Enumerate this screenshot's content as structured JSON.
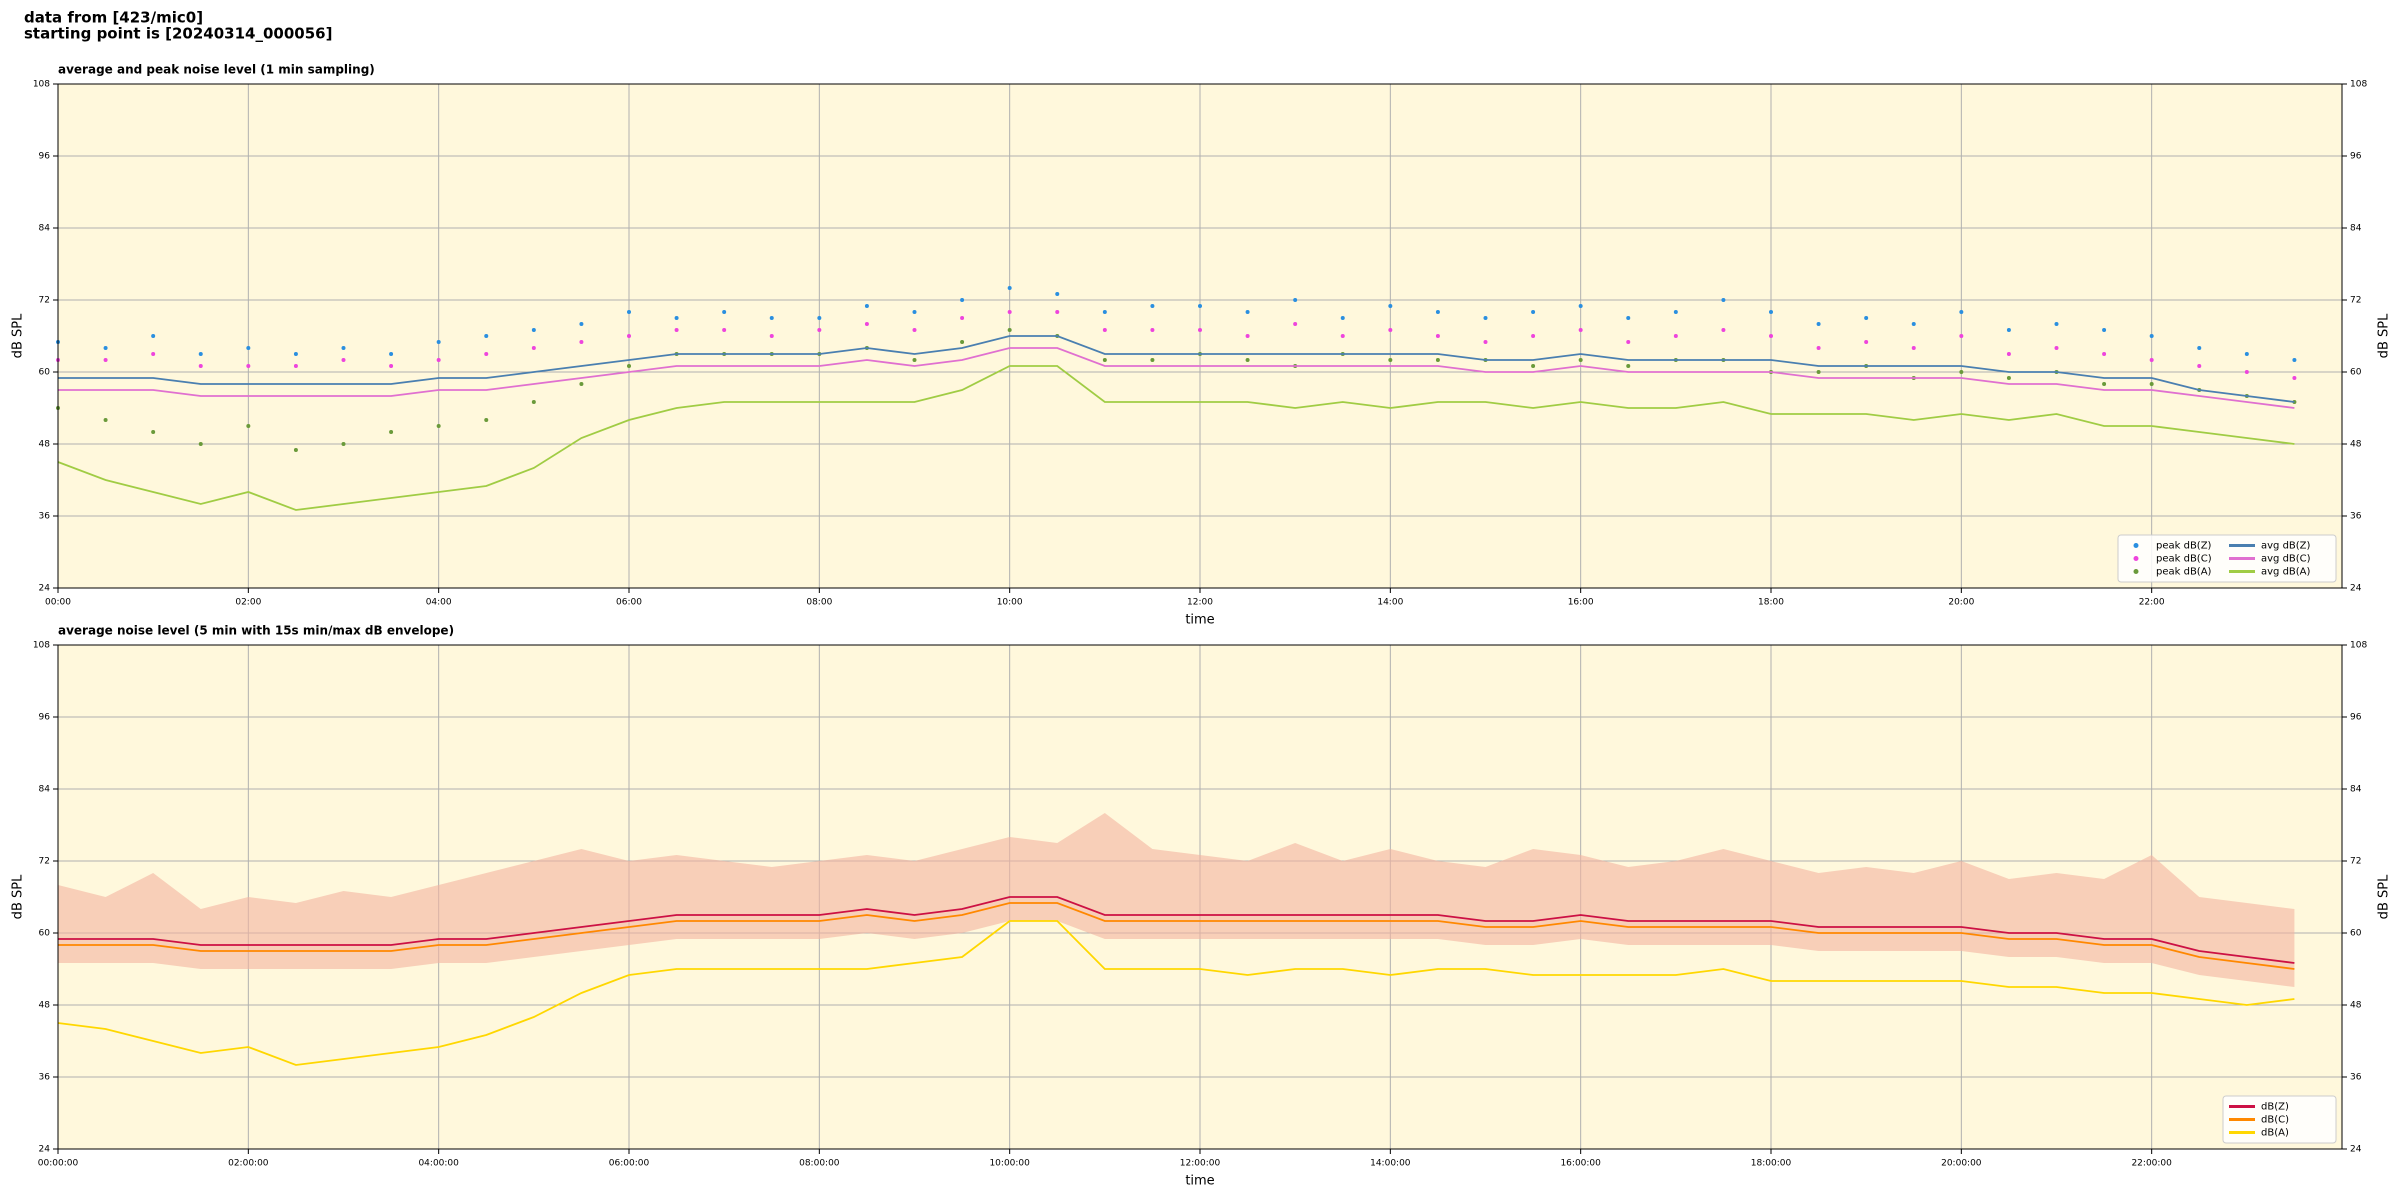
{
  "header": {
    "lines": [
      "data from [423/mic0]",
      "starting point is [20240314_000056]"
    ]
  },
  "chart_data": [
    {
      "type": "line",
      "title": "average and peak noise level (1 min sampling)",
      "xlabel": "time",
      "ylabel": "dB SPL",
      "ylabel_right": "dB SPL",
      "x": [
        0,
        0.5,
        1,
        1.5,
        2,
        2.5,
        3,
        3.5,
        4,
        4.5,
        5,
        5.5,
        6,
        6.5,
        7,
        7.5,
        8,
        8.5,
        9,
        9.5,
        10,
        10.5,
        11,
        11.5,
        12,
        12.5,
        13,
        13.5,
        14,
        14.5,
        15,
        15.5,
        16,
        16.5,
        17,
        17.5,
        18,
        18.5,
        19,
        19.5,
        20,
        20.5,
        21,
        21.5,
        22,
        22.5,
        23,
        23.5
      ],
      "xlim": [
        0,
        24
      ],
      "ylim": [
        24,
        108
      ],
      "yticks": [
        24,
        36,
        48,
        60,
        72,
        84,
        96,
        108
      ],
      "xticks": [
        {
          "value": 0,
          "label": "00:00"
        },
        {
          "value": 2,
          "label": "02:00"
        },
        {
          "value": 4,
          "label": "04:00"
        },
        {
          "value": 6,
          "label": "06:00"
        },
        {
          "value": 8,
          "label": "08:00"
        },
        {
          "value": 10,
          "label": "10:00"
        },
        {
          "value": 12,
          "label": "12:00"
        },
        {
          "value": 14,
          "label": "14:00"
        },
        {
          "value": 16,
          "label": "16:00"
        },
        {
          "value": 18,
          "label": "18:00"
        },
        {
          "value": 20,
          "label": "20:00"
        },
        {
          "value": 22,
          "label": "22:00"
        }
      ],
      "grid": true,
      "background": "#fff8dc",
      "legend": "lower right",
      "legend_columns": 2,
      "series": [
        {
          "name": "peak dB(Z)",
          "mark": "points",
          "color": "#2a8fe0",
          "values": [
            65,
            64,
            66,
            63,
            64,
            63,
            64,
            63,
            65,
            66,
            67,
            68,
            70,
            69,
            70,
            69,
            69,
            71,
            70,
            72,
            74,
            73,
            70,
            71,
            71,
            70,
            72,
            69,
            71,
            70,
            69,
            70,
            71,
            69,
            70,
            72,
            70,
            68,
            69,
            68,
            70,
            67,
            68,
            67,
            66,
            64,
            63,
            62
          ]
        },
        {
          "name": "peak dB(C)",
          "mark": "points",
          "color": "#ee44dd",
          "values": [
            62,
            62,
            63,
            61,
            61,
            61,
            62,
            61,
            62,
            63,
            64,
            65,
            66,
            67,
            67,
            66,
            67,
            68,
            67,
            69,
            70,
            70,
            67,
            67,
            67,
            66,
            68,
            66,
            67,
            66,
            65,
            66,
            67,
            65,
            66,
            67,
            66,
            64,
            65,
            64,
            66,
            63,
            64,
            63,
            62,
            61,
            60,
            59
          ]
        },
        {
          "name": "peak dB(A)",
          "mark": "points",
          "color": "#6a9a3a",
          "values": [
            54,
            52,
            50,
            48,
            51,
            47,
            48,
            50,
            51,
            52,
            55,
            58,
            61,
            63,
            63,
            63,
            63,
            64,
            62,
            65,
            67,
            66,
            62,
            62,
            63,
            62,
            61,
            63,
            62,
            62,
            62,
            61,
            62,
            61,
            62,
            62,
            60,
            60,
            61,
            59,
            60,
            59,
            60,
            58,
            58,
            57,
            56,
            55
          ]
        },
        {
          "name": "avg dB(Z)",
          "mark": "line",
          "color": "#4a7fb0",
          "values": [
            59,
            59,
            59,
            58,
            58,
            58,
            58,
            58,
            59,
            59,
            60,
            61,
            62,
            63,
            63,
            63,
            63,
            64,
            63,
            64,
            66,
            66,
            63,
            63,
            63,
            63,
            63,
            63,
            63,
            63,
            62,
            62,
            63,
            62,
            62,
            62,
            62,
            61,
            61,
            61,
            61,
            60,
            60,
            59,
            59,
            57,
            56,
            55
          ]
        },
        {
          "name": "avg dB(C)",
          "mark": "line",
          "color": "#e070d0",
          "values": [
            57,
            57,
            57,
            56,
            56,
            56,
            56,
            56,
            57,
            57,
            58,
            59,
            60,
            61,
            61,
            61,
            61,
            62,
            61,
            62,
            64,
            64,
            61,
            61,
            61,
            61,
            61,
            61,
            61,
            61,
            60,
            60,
            61,
            60,
            60,
            60,
            60,
            59,
            59,
            59,
            59,
            58,
            58,
            57,
            57,
            56,
            55,
            54
          ]
        },
        {
          "name": "avg dB(A)",
          "mark": "line",
          "color": "#a0cc44",
          "values": [
            45,
            42,
            40,
            38,
            40,
            37,
            38,
            39,
            40,
            41,
            44,
            49,
            52,
            54,
            55,
            55,
            55,
            55,
            55,
            57,
            61,
            61,
            55,
            55,
            55,
            55,
            54,
            55,
            54,
            55,
            55,
            54,
            55,
            54,
            54,
            55,
            53,
            53,
            53,
            52,
            53,
            52,
            53,
            51,
            51,
            50,
            49,
            48
          ]
        }
      ]
    },
    {
      "type": "line",
      "title": "average noise level (5 min with 15s min/max dB envelope)",
      "xlabel": "time",
      "ylabel": "dB SPL",
      "ylabel_right": "dB SPL",
      "x": [
        0,
        0.5,
        1,
        1.5,
        2,
        2.5,
        3,
        3.5,
        4,
        4.5,
        5,
        5.5,
        6,
        6.5,
        7,
        7.5,
        8,
        8.5,
        9,
        9.5,
        10,
        10.5,
        11,
        11.5,
        12,
        12.5,
        13,
        13.5,
        14,
        14.5,
        15,
        15.5,
        16,
        16.5,
        17,
        17.5,
        18,
        18.5,
        19,
        19.5,
        20,
        20.5,
        21,
        21.5,
        22,
        22.5,
        23,
        23.5
      ],
      "xlim": [
        0,
        24
      ],
      "ylim": [
        24,
        108
      ],
      "yticks": [
        24,
        36,
        48,
        60,
        72,
        84,
        96,
        108
      ],
      "xticks": [
        {
          "value": 0,
          "label": "00:00:00"
        },
        {
          "value": 2,
          "label": "02:00:00"
        },
        {
          "value": 4,
          "label": "04:00:00"
        },
        {
          "value": 6,
          "label": "06:00:00"
        },
        {
          "value": 8,
          "label": "08:00:00"
        },
        {
          "value": 10,
          "label": "10:00:00"
        },
        {
          "value": 12,
          "label": "12:00:00"
        },
        {
          "value": 14,
          "label": "14:00:00"
        },
        {
          "value": 16,
          "label": "16:00:00"
        },
        {
          "value": 18,
          "label": "18:00:00"
        },
        {
          "value": 20,
          "label": "20:00:00"
        },
        {
          "value": 22,
          "label": "22:00:00"
        }
      ],
      "grid": true,
      "background": "#fff8dc",
      "legend": "lower right",
      "legend_columns": 1,
      "envelope": {
        "color": "#f4b4a0",
        "lower": [
          55,
          55,
          55,
          54,
          54,
          54,
          54,
          54,
          55,
          55,
          56,
          57,
          58,
          59,
          59,
          59,
          59,
          60,
          59,
          60,
          62,
          62,
          59,
          59,
          59,
          59,
          59,
          59,
          59,
          59,
          58,
          58,
          59,
          58,
          58,
          58,
          58,
          57,
          57,
          57,
          57,
          56,
          56,
          55,
          55,
          53,
          52,
          51
        ],
        "upper": [
          68,
          66,
          70,
          64,
          66,
          65,
          67,
          66,
          68,
          70,
          72,
          74,
          72,
          73,
          72,
          71,
          72,
          73,
          72,
          74,
          76,
          75,
          80,
          74,
          73,
          72,
          75,
          72,
          74,
          72,
          71,
          74,
          73,
          71,
          72,
          74,
          72,
          70,
          71,
          70,
          72,
          69,
          70,
          69,
          73,
          66,
          65,
          64
        ]
      },
      "series": [
        {
          "name": "dB(Z)",
          "mark": "line",
          "color": "#cc1144",
          "values": [
            59,
            59,
            59,
            58,
            58,
            58,
            58,
            58,
            59,
            59,
            60,
            61,
            62,
            63,
            63,
            63,
            63,
            64,
            63,
            64,
            66,
            66,
            63,
            63,
            63,
            63,
            63,
            63,
            63,
            63,
            62,
            62,
            63,
            62,
            62,
            62,
            62,
            61,
            61,
            61,
            61,
            60,
            60,
            59,
            59,
            57,
            56,
            55
          ]
        },
        {
          "name": "dB(C)",
          "mark": "line",
          "color": "#ff8800",
          "values": [
            58,
            58,
            58,
            57,
            57,
            57,
            57,
            57,
            58,
            58,
            59,
            60,
            61,
            62,
            62,
            62,
            62,
            63,
            62,
            63,
            65,
            65,
            62,
            62,
            62,
            62,
            62,
            62,
            62,
            62,
            61,
            61,
            62,
            61,
            61,
            61,
            61,
            60,
            60,
            60,
            60,
            59,
            59,
            58,
            58,
            56,
            55,
            54
          ]
        },
        {
          "name": "dB(A)",
          "mark": "line",
          "color": "#ffd700",
          "values": [
            45,
            44,
            42,
            40,
            41,
            38,
            39,
            40,
            41,
            43,
            46,
            50,
            53,
            54,
            54,
            54,
            54,
            54,
            55,
            56,
            62,
            62,
            54,
            54,
            54,
            53,
            54,
            54,
            53,
            54,
            54,
            53,
            53,
            53,
            53,
            54,
            52,
            52,
            52,
            52,
            52,
            51,
            51,
            50,
            50,
            49,
            48,
            49
          ]
        }
      ]
    }
  ]
}
